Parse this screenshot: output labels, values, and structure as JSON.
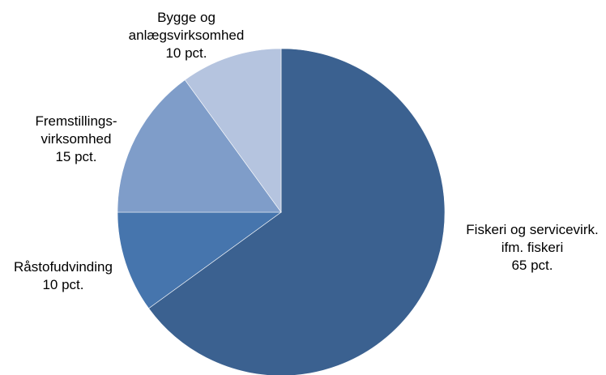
{
  "chart_data": {
    "type": "pie",
    "start": "12 o'clock",
    "direction": "clockwise",
    "legend": "none",
    "slices": [
      {
        "label_lines": [
          "Fiskeri og servicevirk.",
          "ifm. fiskeri",
          "65 pct."
        ],
        "value": 65,
        "color": "#3b6190"
      },
      {
        "label_lines": [
          "Råstofudvinding",
          "10 pct."
        ],
        "value": 10,
        "color": "#4675ad"
      },
      {
        "label_lines": [
          "Fremstillings-",
          "virksomhed",
          "15 pct."
        ],
        "value": 15,
        "color": "#7f9dc9"
      },
      {
        "label_lines": [
          "Bygge og",
          "anlægsvirksomhed",
          "10 pct."
        ],
        "value": 10,
        "color": "#b5c4df"
      }
    ]
  }
}
